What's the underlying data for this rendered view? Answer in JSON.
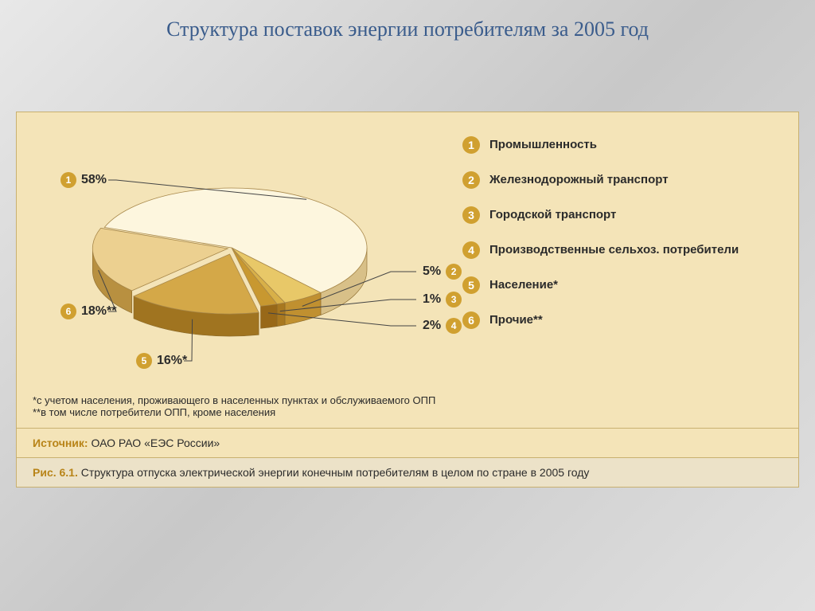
{
  "title": "Структура поставок энергии потребителям за 2005 год",
  "chart": {
    "type": "pie",
    "background_color": "#f4e4b8",
    "border_color": "#c8b070",
    "badge_color": "#d0a030",
    "slices": [
      {
        "num": "1",
        "label": "Промышленность",
        "value": 58,
        "display": "58%",
        "color_top": "#fdf6de",
        "color_side": "#d8c088"
      },
      {
        "num": "2",
        "label": "Железнодорожный транспорт",
        "value": 5,
        "display": "5%",
        "color_top": "#e8c868",
        "color_side": "#c09030"
      },
      {
        "num": "3",
        "label": "Городской транспорт",
        "value": 1,
        "display": "1%",
        "color_top": "#d8b048",
        "color_side": "#a87820"
      },
      {
        "num": "4",
        "label": "Производственные сельхоз. потребители",
        "value": 2,
        "display": "2%",
        "color_top": "#c89830",
        "color_side": "#986818"
      },
      {
        "num": "5",
        "label": "Население*",
        "value": 16,
        "display": "16%*",
        "color_top": "#d4a848",
        "color_side": "#a07420"
      },
      {
        "num": "6",
        "label": "Прочие**",
        "value": 18,
        "display": "18%**",
        "color_top": "#ecd090",
        "color_side": "#b89040"
      }
    ],
    "footnote1": "*с учетом населения, проживающего в населенных пунктах и обслуживаемого ОПП",
    "footnote2": "**в том числе потребители ОПП, кроме населения",
    "source_label": "Источник:",
    "source_text": "ОАО РАО «ЕЭС России»",
    "caption_label": "Рис. 6.1.",
    "caption_text": "Структура отпуска электрической энергии конечным потребителям в целом по стране в 2005 году",
    "label_fontsize": 15,
    "title_color": "#3a5c8c",
    "accent_color": "#b88418"
  }
}
